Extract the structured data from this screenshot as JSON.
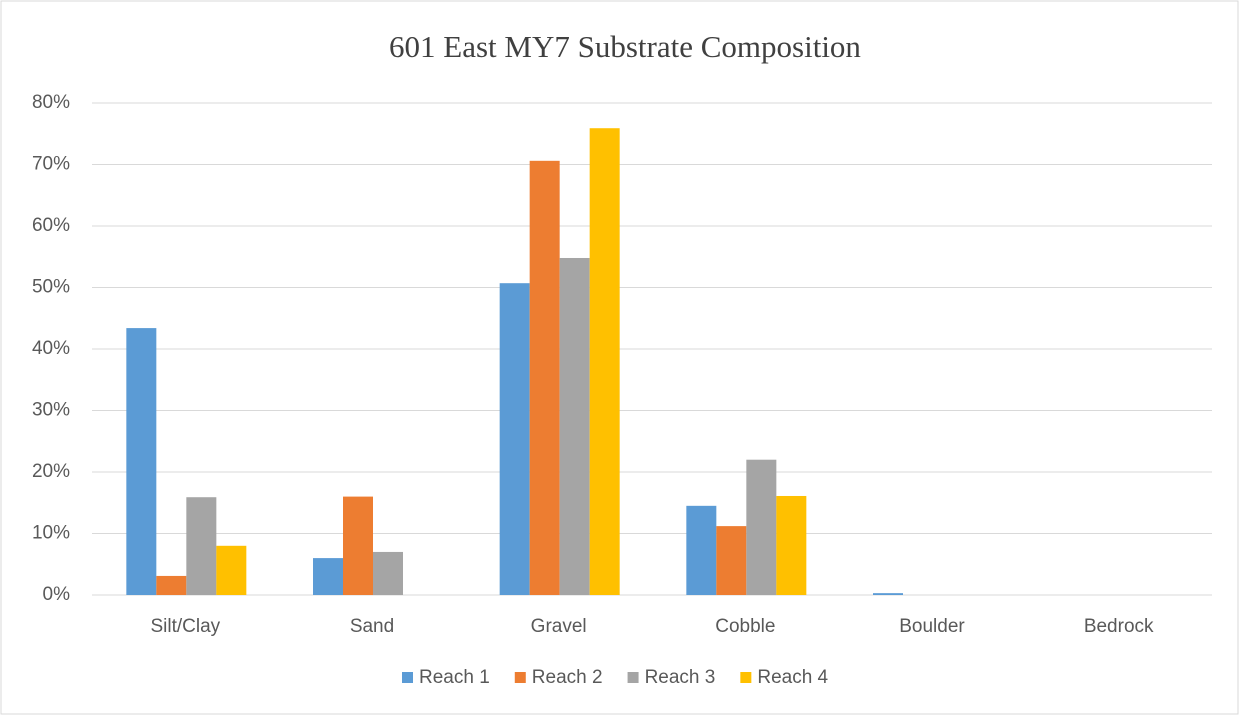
{
  "chart_data": {
    "type": "bar",
    "title": "601 East MY7 Substrate Composition",
    "categories": [
      "Silt/Clay",
      "Sand",
      "Gravel",
      "Cobble",
      "Boulder",
      "Bedrock"
    ],
    "series": [
      {
        "name": "Reach 1",
        "color": "#5b9bd5",
        "values": [
          43.4,
          6,
          50.7,
          14.5,
          0.3,
          0
        ]
      },
      {
        "name": "Reach 2",
        "color": "#ed7d31",
        "values": [
          3.1,
          16,
          70.6,
          11.2,
          0,
          0
        ]
      },
      {
        "name": "Reach 3",
        "color": "#a5a5a5",
        "values": [
          15.9,
          7,
          54.8,
          22,
          0,
          0
        ]
      },
      {
        "name": "Reach 4",
        "color": "#ffc000",
        "values": [
          8,
          0,
          75.9,
          16.1,
          0,
          0
        ]
      }
    ],
    "ylim": [
      0,
      80
    ],
    "yticks": [
      {
        "value": 0,
        "label": "0%"
      },
      {
        "value": 10,
        "label": "10%"
      },
      {
        "value": 20,
        "label": "20%"
      },
      {
        "value": 30,
        "label": "30%"
      },
      {
        "value": 40,
        "label": "40%"
      },
      {
        "value": 50,
        "label": "50%"
      },
      {
        "value": 60,
        "label": "60%"
      },
      {
        "value": 70,
        "label": "70%"
      },
      {
        "value": 80,
        "label": "80%"
      }
    ],
    "grid": true,
    "legend": "bottom"
  }
}
